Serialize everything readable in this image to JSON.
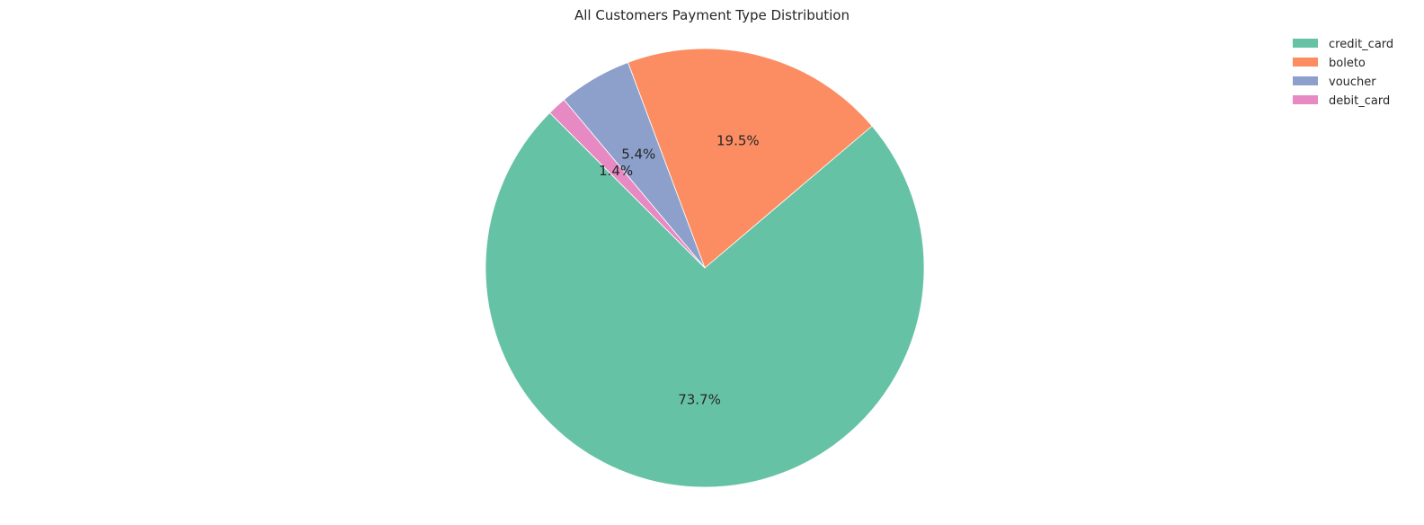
{
  "chart_data": {
    "type": "pie",
    "title": "All Customers Payment Type Distribution",
    "start_angle_deg": 135,
    "direction": "counterclockwise",
    "legend_placement": "top-right",
    "slices": [
      {
        "label": "credit_card",
        "percent": 73.7,
        "percent_label": "73.7%",
        "color": "#66c2a5"
      },
      {
        "label": "boleto",
        "percent": 19.5,
        "percent_label": "19.5%",
        "color": "#fc8d62"
      },
      {
        "label": "voucher",
        "percent": 5.4,
        "percent_label": "5.4%",
        "color": "#8da0cb"
      },
      {
        "label": "debit_card",
        "percent": 1.4,
        "percent_label": "1.4%",
        "color": "#e78ac3"
      }
    ]
  }
}
